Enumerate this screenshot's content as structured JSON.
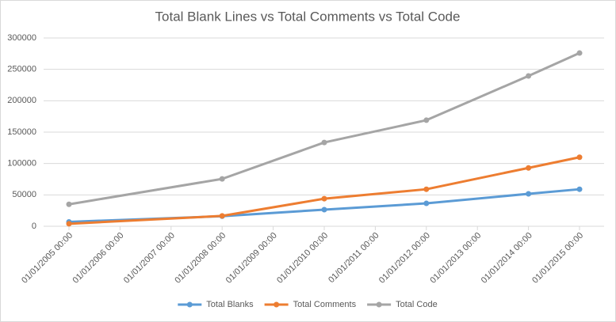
{
  "chart_data": {
    "type": "line",
    "title": "Total Blank Lines vs Total Comments vs Total Code",
    "x": [
      2005,
      2008,
      2010,
      2012,
      2014,
      2015
    ],
    "xlim": [
      2005,
      2015
    ],
    "xticks": [
      {
        "value": 2005,
        "label": "01/01/2005 00:00"
      },
      {
        "value": 2006,
        "label": "01/01/2006 00:00"
      },
      {
        "value": 2007,
        "label": "01/01/2007 00:00"
      },
      {
        "value": 2008,
        "label": "01/01/2008 00:00"
      },
      {
        "value": 2009,
        "label": "01/01/2009 00:00"
      },
      {
        "value": 2010,
        "label": "01/01/2010 00:00"
      },
      {
        "value": 2011,
        "label": "01/01/2011 00:00"
      },
      {
        "value": 2012,
        "label": "01/01/2012 00:00"
      },
      {
        "value": 2013,
        "label": "01/01/2013 00:00"
      },
      {
        "value": 2014,
        "label": "01/01/2014 00:00"
      },
      {
        "value": 2015,
        "label": "01/01/2015 00:00"
      }
    ],
    "ylim": [
      0,
      300000
    ],
    "yticks": [
      0,
      50000,
      100000,
      150000,
      200000,
      250000,
      300000
    ],
    "grid": true,
    "legend": "bottom",
    "series": [
      {
        "name": "Total Blanks",
        "color": "#5b9bd5",
        "values": [
          7000,
          16000,
          26500,
          36500,
          51700,
          59000
        ]
      },
      {
        "name": "Total Comments",
        "color": "#ed7d31",
        "values": [
          4000,
          16500,
          44000,
          59000,
          93000,
          110000
        ]
      },
      {
        "name": "Total Code",
        "color": "#a5a5a5",
        "values": [
          35000,
          75500,
          133500,
          169000,
          239500,
          276000
        ]
      }
    ]
  }
}
